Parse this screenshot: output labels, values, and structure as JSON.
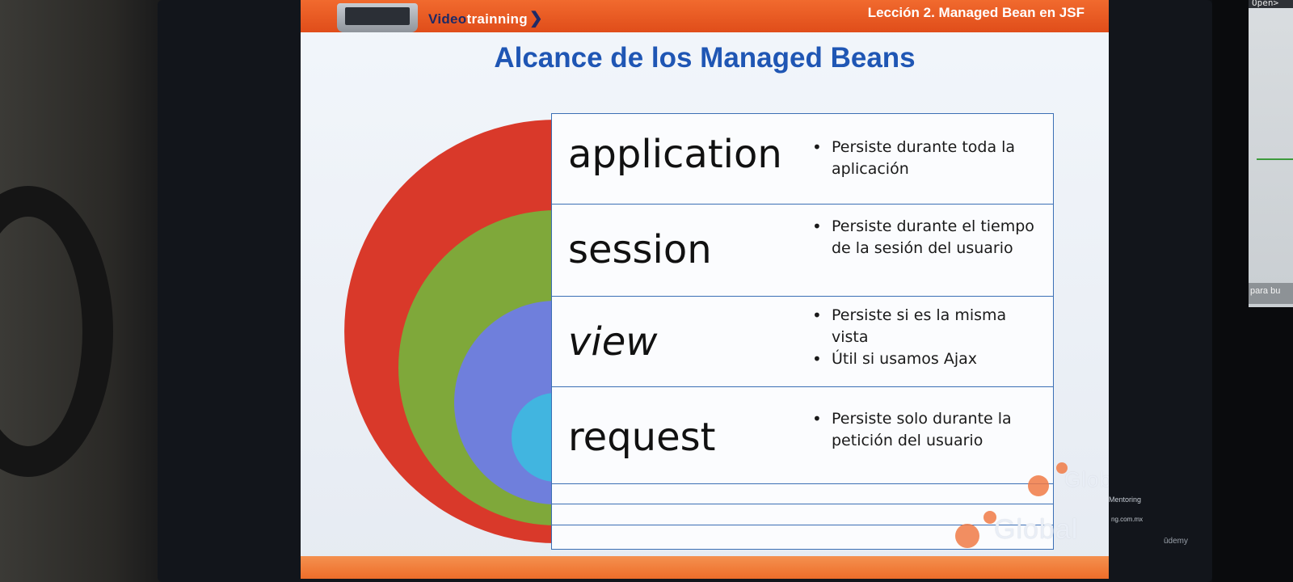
{
  "header": {
    "brand_prefix": "Video",
    "brand_suffix": "trainning",
    "lesson": "Lección 2. Managed Bean en JSF"
  },
  "slide": {
    "title": "Alcance de los Managed Beans"
  },
  "scopes": [
    {
      "name": "application",
      "bullets": [
        "Persiste durante toda la aplicación"
      ],
      "color": "#d9392a"
    },
    {
      "name": "session",
      "bullets": [
        "Persiste durante el tiempo de la sesión del usuario"
      ],
      "color": "#7fa83a"
    },
    {
      "name": "view",
      "bullets": [
        "Persiste si es la misma vista",
        "Útil si usamos Ajax"
      ],
      "color": "#6f7fdc"
    },
    {
      "name": "request",
      "bullets": [
        "Persiste solo durante la petición del usuario"
      ],
      "color": "#41b5e0"
    }
  ],
  "watermark": {
    "logo": "Global",
    "tagline": "Mentoring",
    "web": "ng.com.mx",
    "udemy": "ūdemy"
  },
  "second_screen": {
    "top_text": "Open>",
    "foot_text": "para bu"
  }
}
